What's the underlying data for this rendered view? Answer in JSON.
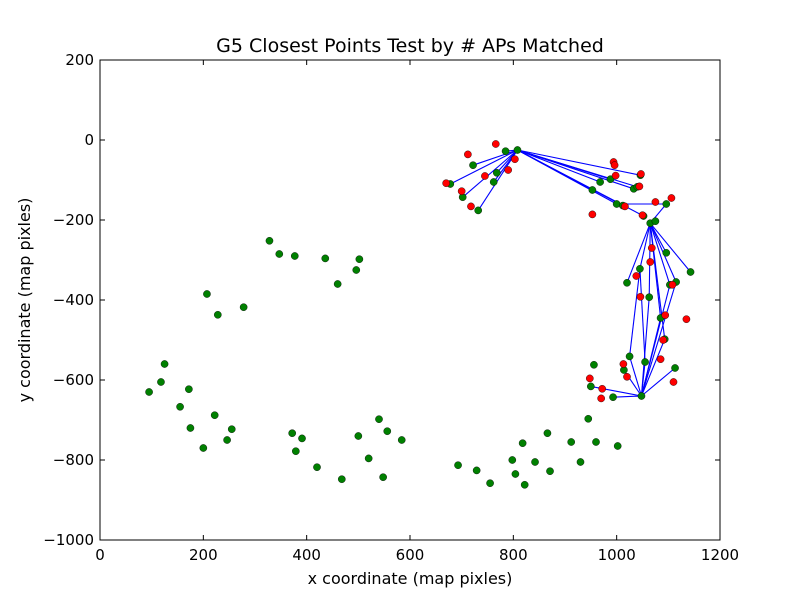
{
  "chart_data": {
    "type": "scatter",
    "title": "G5 Closest Points Test by # APs Matched",
    "xlabel": "x coordinate (map pixles)",
    "ylabel": "y coordinate (map pixles)",
    "xlim": [
      0,
      1200
    ],
    "ylim": [
      -1000,
      200
    ],
    "xticks": [
      0,
      200,
      400,
      600,
      800,
      1000,
      1200
    ],
    "yticks": [
      -1000,
      -800,
      -600,
      -400,
      -200,
      0,
      200
    ],
    "xtick_labels": [
      "0",
      "200",
      "400",
      "600",
      "800",
      "1000",
      "1200"
    ],
    "ytick_labels": [
      "−1000",
      "−800",
      "−600",
      "−400",
      "−200",
      "0",
      "200"
    ],
    "grid": false,
    "colors": {
      "green": "#008000",
      "red": "#ff0000",
      "line": "#0000ff"
    },
    "series": [
      {
        "color": "green",
        "points": [
          [
            95,
            -630
          ],
          [
            118,
            -605
          ],
          [
            125,
            -560
          ],
          [
            155,
            -667
          ],
          [
            172,
            -623
          ],
          [
            175,
            -720
          ],
          [
            200,
            -770
          ],
          [
            207,
            -385
          ],
          [
            222,
            -688
          ],
          [
            228,
            -437
          ],
          [
            246,
            -750
          ],
          [
            255,
            -723
          ],
          [
            278,
            -418
          ],
          [
            328,
            -252
          ],
          [
            347,
            -285
          ],
          [
            377,
            -290
          ],
          [
            372,
            -733
          ],
          [
            379,
            -778
          ],
          [
            391,
            -746
          ],
          [
            420,
            -818
          ],
          [
            436,
            -296
          ],
          [
            460,
            -360
          ],
          [
            468,
            -848
          ],
          [
            496,
            -325
          ],
          [
            502,
            -298
          ],
          [
            500,
            -740
          ],
          [
            520,
            -796
          ],
          [
            540,
            -698
          ],
          [
            548,
            -843
          ],
          [
            556,
            -728
          ],
          [
            584,
            -750
          ],
          [
            678,
            -110
          ],
          [
            693,
            -813
          ],
          [
            702,
            -143
          ],
          [
            722,
            -63
          ],
          [
            729,
            -826
          ],
          [
            732,
            -176
          ],
          [
            755,
            -858
          ],
          [
            762,
            -105
          ],
          [
            768,
            -82
          ],
          [
            785,
            -28
          ],
          [
            798,
            -800
          ],
          [
            804,
            -835
          ],
          [
            808,
            -25
          ],
          [
            818,
            -758
          ],
          [
            822,
            -862
          ],
          [
            842,
            -805
          ],
          [
            866,
            -733
          ],
          [
            871,
            -828
          ],
          [
            912,
            -755
          ],
          [
            930,
            -805
          ],
          [
            945,
            -697
          ],
          [
            953,
            -125
          ],
          [
            956,
            -562
          ],
          [
            960,
            -755
          ],
          [
            968,
            -105
          ],
          [
            988,
            -98
          ],
          [
            993,
            -643
          ],
          [
            1000,
            -160
          ],
          [
            1002,
            -765
          ],
          [
            1012,
            -164
          ],
          [
            1014,
            -575
          ],
          [
            1020,
            -357
          ],
          [
            1025,
            -541
          ],
          [
            1033,
            -122
          ],
          [
            1040,
            -117
          ],
          [
            1045,
            -322
          ],
          [
            1048,
            -640
          ],
          [
            1052,
            -190
          ],
          [
            1055,
            -555
          ],
          [
            1063,
            -393
          ],
          [
            1065,
            -208
          ],
          [
            1075,
            -203
          ],
          [
            1085,
            -445
          ],
          [
            1093,
            -498
          ],
          [
            1096,
            -160
          ],
          [
            1096,
            -282
          ],
          [
            1103,
            -362
          ],
          [
            1113,
            -570
          ],
          [
            1115,
            -355
          ],
          [
            1143,
            -330
          ],
          [
            1046,
            -88
          ],
          [
            950,
            -616
          ]
        ]
      },
      {
        "color": "red",
        "points": [
          [
            670,
            -108
          ],
          [
            700,
            -128
          ],
          [
            712,
            -36
          ],
          [
            718,
            -166
          ],
          [
            745,
            -90
          ],
          [
            766,
            -10
          ],
          [
            790,
            -75
          ],
          [
            803,
            -48
          ],
          [
            948,
            -596
          ],
          [
            953,
            -186
          ],
          [
            972,
            -622
          ],
          [
            970,
            -646
          ],
          [
            994,
            -55
          ],
          [
            996,
            -63
          ],
          [
            998,
            -89
          ],
          [
            1013,
            -560
          ],
          [
            1016,
            -166
          ],
          [
            1020,
            -592
          ],
          [
            1038,
            -340
          ],
          [
            1044,
            -116
          ],
          [
            1046,
            -392
          ],
          [
            1047,
            -85
          ],
          [
            1050,
            -188
          ],
          [
            1065,
            -305
          ],
          [
            1068,
            -270
          ],
          [
            1075,
            -155
          ],
          [
            1085,
            -548
          ],
          [
            1090,
            -500
          ],
          [
            1094,
            -438
          ],
          [
            1106,
            -145
          ],
          [
            1108,
            -362
          ],
          [
            1110,
            -605
          ],
          [
            1135,
            -448
          ]
        ]
      }
    ],
    "lines": [
      [
        [
          808,
          -25
        ],
        [
          678,
          -110
        ]
      ],
      [
        [
          808,
          -25
        ],
        [
          702,
          -143
        ]
      ],
      [
        [
          808,
          -25
        ],
        [
          722,
          -63
        ]
      ],
      [
        [
          808,
          -25
        ],
        [
          732,
          -176
        ]
      ],
      [
        [
          808,
          -25
        ],
        [
          762,
          -105
        ]
      ],
      [
        [
          808,
          -25
        ],
        [
          768,
          -82
        ]
      ],
      [
        [
          808,
          -25
        ],
        [
          785,
          -28
        ]
      ],
      [
        [
          808,
          -25
        ],
        [
          953,
          -125
        ]
      ],
      [
        [
          808,
          -25
        ],
        [
          968,
          -105
        ]
      ],
      [
        [
          808,
          -25
        ],
        [
          988,
          -98
        ]
      ],
      [
        [
          808,
          -25
        ],
        [
          1046,
          -88
        ]
      ],
      [
        [
          808,
          -25
        ],
        [
          1033,
          -122
        ]
      ],
      [
        [
          808,
          -25
        ],
        [
          1040,
          -117
        ]
      ],
      [
        [
          808,
          -25
        ],
        [
          1000,
          -160
        ]
      ],
      [
        [
          808,
          -25
        ],
        [
          1012,
          -164
        ]
      ],
      [
        [
          808,
          -25
        ],
        [
          1052,
          -190
        ]
      ],
      [
        [
          1000,
          -160
        ],
        [
          1096,
          -160
        ]
      ],
      [
        [
          1065,
          -208
        ],
        [
          1096,
          -160
        ]
      ],
      [
        [
          1065,
          -208
        ],
        [
          1045,
          -322
        ]
      ],
      [
        [
          1065,
          -208
        ],
        [
          1020,
          -357
        ]
      ],
      [
        [
          1065,
          -208
        ],
        [
          1096,
          -282
        ]
      ],
      [
        [
          1065,
          -208
        ],
        [
          1143,
          -330
        ]
      ],
      [
        [
          1065,
          -208
        ],
        [
          1063,
          -393
        ]
      ],
      [
        [
          1065,
          -208
        ],
        [
          1115,
          -355
        ]
      ],
      [
        [
          1065,
          -208
        ],
        [
          1103,
          -362
        ]
      ],
      [
        [
          1065,
          -208
        ],
        [
          1085,
          -445
        ]
      ],
      [
        [
          1065,
          -208
        ],
        [
          1093,
          -498
        ]
      ],
      [
        [
          1045,
          -322
        ],
        [
          1025,
          -541
        ]
      ],
      [
        [
          1045,
          -322
        ],
        [
          1055,
          -555
        ]
      ],
      [
        [
          1048,
          -640
        ],
        [
          1115,
          -355
        ]
      ],
      [
        [
          1048,
          -640
        ],
        [
          1103,
          -362
        ]
      ],
      [
        [
          1048,
          -640
        ],
        [
          1085,
          -445
        ]
      ],
      [
        [
          1048,
          -640
        ],
        [
          1093,
          -498
        ]
      ],
      [
        [
          1048,
          -640
        ],
        [
          1113,
          -570
        ]
      ],
      [
        [
          1048,
          -640
        ],
        [
          1055,
          -555
        ]
      ],
      [
        [
          1048,
          -640
        ],
        [
          1025,
          -541
        ]
      ],
      [
        [
          1048,
          -640
        ],
        [
          1014,
          -575
        ]
      ],
      [
        [
          1048,
          -640
        ],
        [
          993,
          -643
        ]
      ],
      [
        [
          1048,
          -640
        ],
        [
          950,
          -616
        ]
      ],
      [
        [
          1048,
          -640
        ],
        [
          1063,
          -393
        ]
      ]
    ]
  }
}
